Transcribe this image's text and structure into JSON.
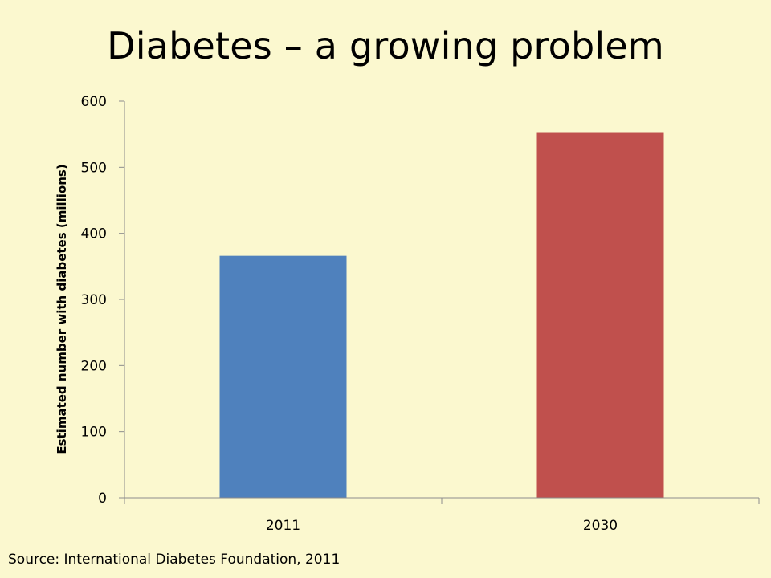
{
  "slide": {
    "title": "Diabetes – a growing problem",
    "source": "Source: International Diabetes Foundation, 2011"
  },
  "chart_data": {
    "type": "bar",
    "categories": [
      "2011",
      "2030"
    ],
    "values": [
      366,
      552
    ],
    "colors": [
      "#4f81bd",
      "#c0504d"
    ],
    "title": "",
    "xlabel": "",
    "ylabel": "Estimated number with diabetes (millions)",
    "ylim": [
      0,
      600
    ],
    "yticks": [
      0,
      100,
      200,
      300,
      400,
      500,
      600
    ],
    "grid": false,
    "legend": "none"
  }
}
